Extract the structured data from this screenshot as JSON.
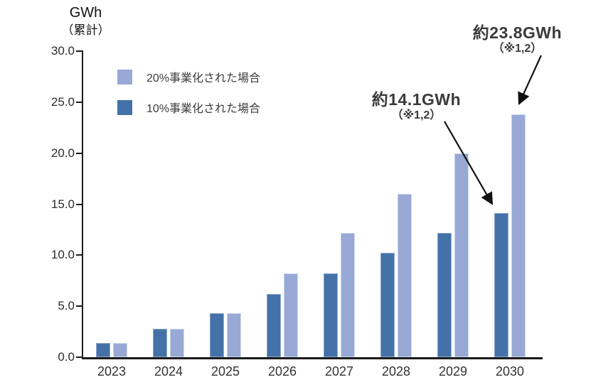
{
  "title": {
    "line1": "GWh",
    "line2": "（累計）"
  },
  "legend": [
    {
      "label": "20%事業化された場合",
      "color": "#97a9d4"
    },
    {
      "label": "10%事業化された場合",
      "color": "#4472a8"
    }
  ],
  "annotations": [
    {
      "value": "約23.8GWh",
      "note": "（※1,2）"
    },
    {
      "value": "約14.1GWh",
      "note": "（※1,2）"
    }
  ],
  "colors": {
    "series_10pct": "#4472a8",
    "series_20pct": "#97a9d4",
    "axis": "#1a1a1a",
    "annotation_text": "#3a3a3a"
  },
  "chart_data": {
    "type": "bar",
    "title": "",
    "ylabel": "GWh（累計）",
    "xlabel": "",
    "categories": [
      "2023",
      "2024",
      "2025",
      "2026",
      "2027",
      "2028",
      "2029",
      "2030"
    ],
    "series": [
      {
        "name": "10%事業化された場合",
        "color": "#4472a8",
        "values": [
          1.4,
          2.8,
          4.3,
          6.2,
          8.2,
          10.2,
          12.2,
          14.1
        ]
      },
      {
        "name": "20%事業化された場合",
        "color": "#97a9d4",
        "values": [
          1.4,
          2.8,
          4.3,
          8.2,
          12.2,
          16.0,
          20.0,
          23.8
        ]
      }
    ],
    "ylim": [
      0,
      30
    ],
    "ytick_step": 5,
    "yticks": [
      "0.0",
      "5.0",
      "10.0",
      "15.0",
      "20.0",
      "25.0",
      "30.0"
    ],
    "grid": false,
    "legend_position": "upper-left-inside",
    "annotations": [
      {
        "text": "約23.8GWh（※1,2）",
        "target_category": "2030",
        "target_series": "20%事業化された場合",
        "target_value": 23.8
      },
      {
        "text": "約14.1GWh（※1,2）",
        "target_category": "2030",
        "target_series": "10%事業化された場合",
        "target_value": 14.1
      }
    ]
  }
}
